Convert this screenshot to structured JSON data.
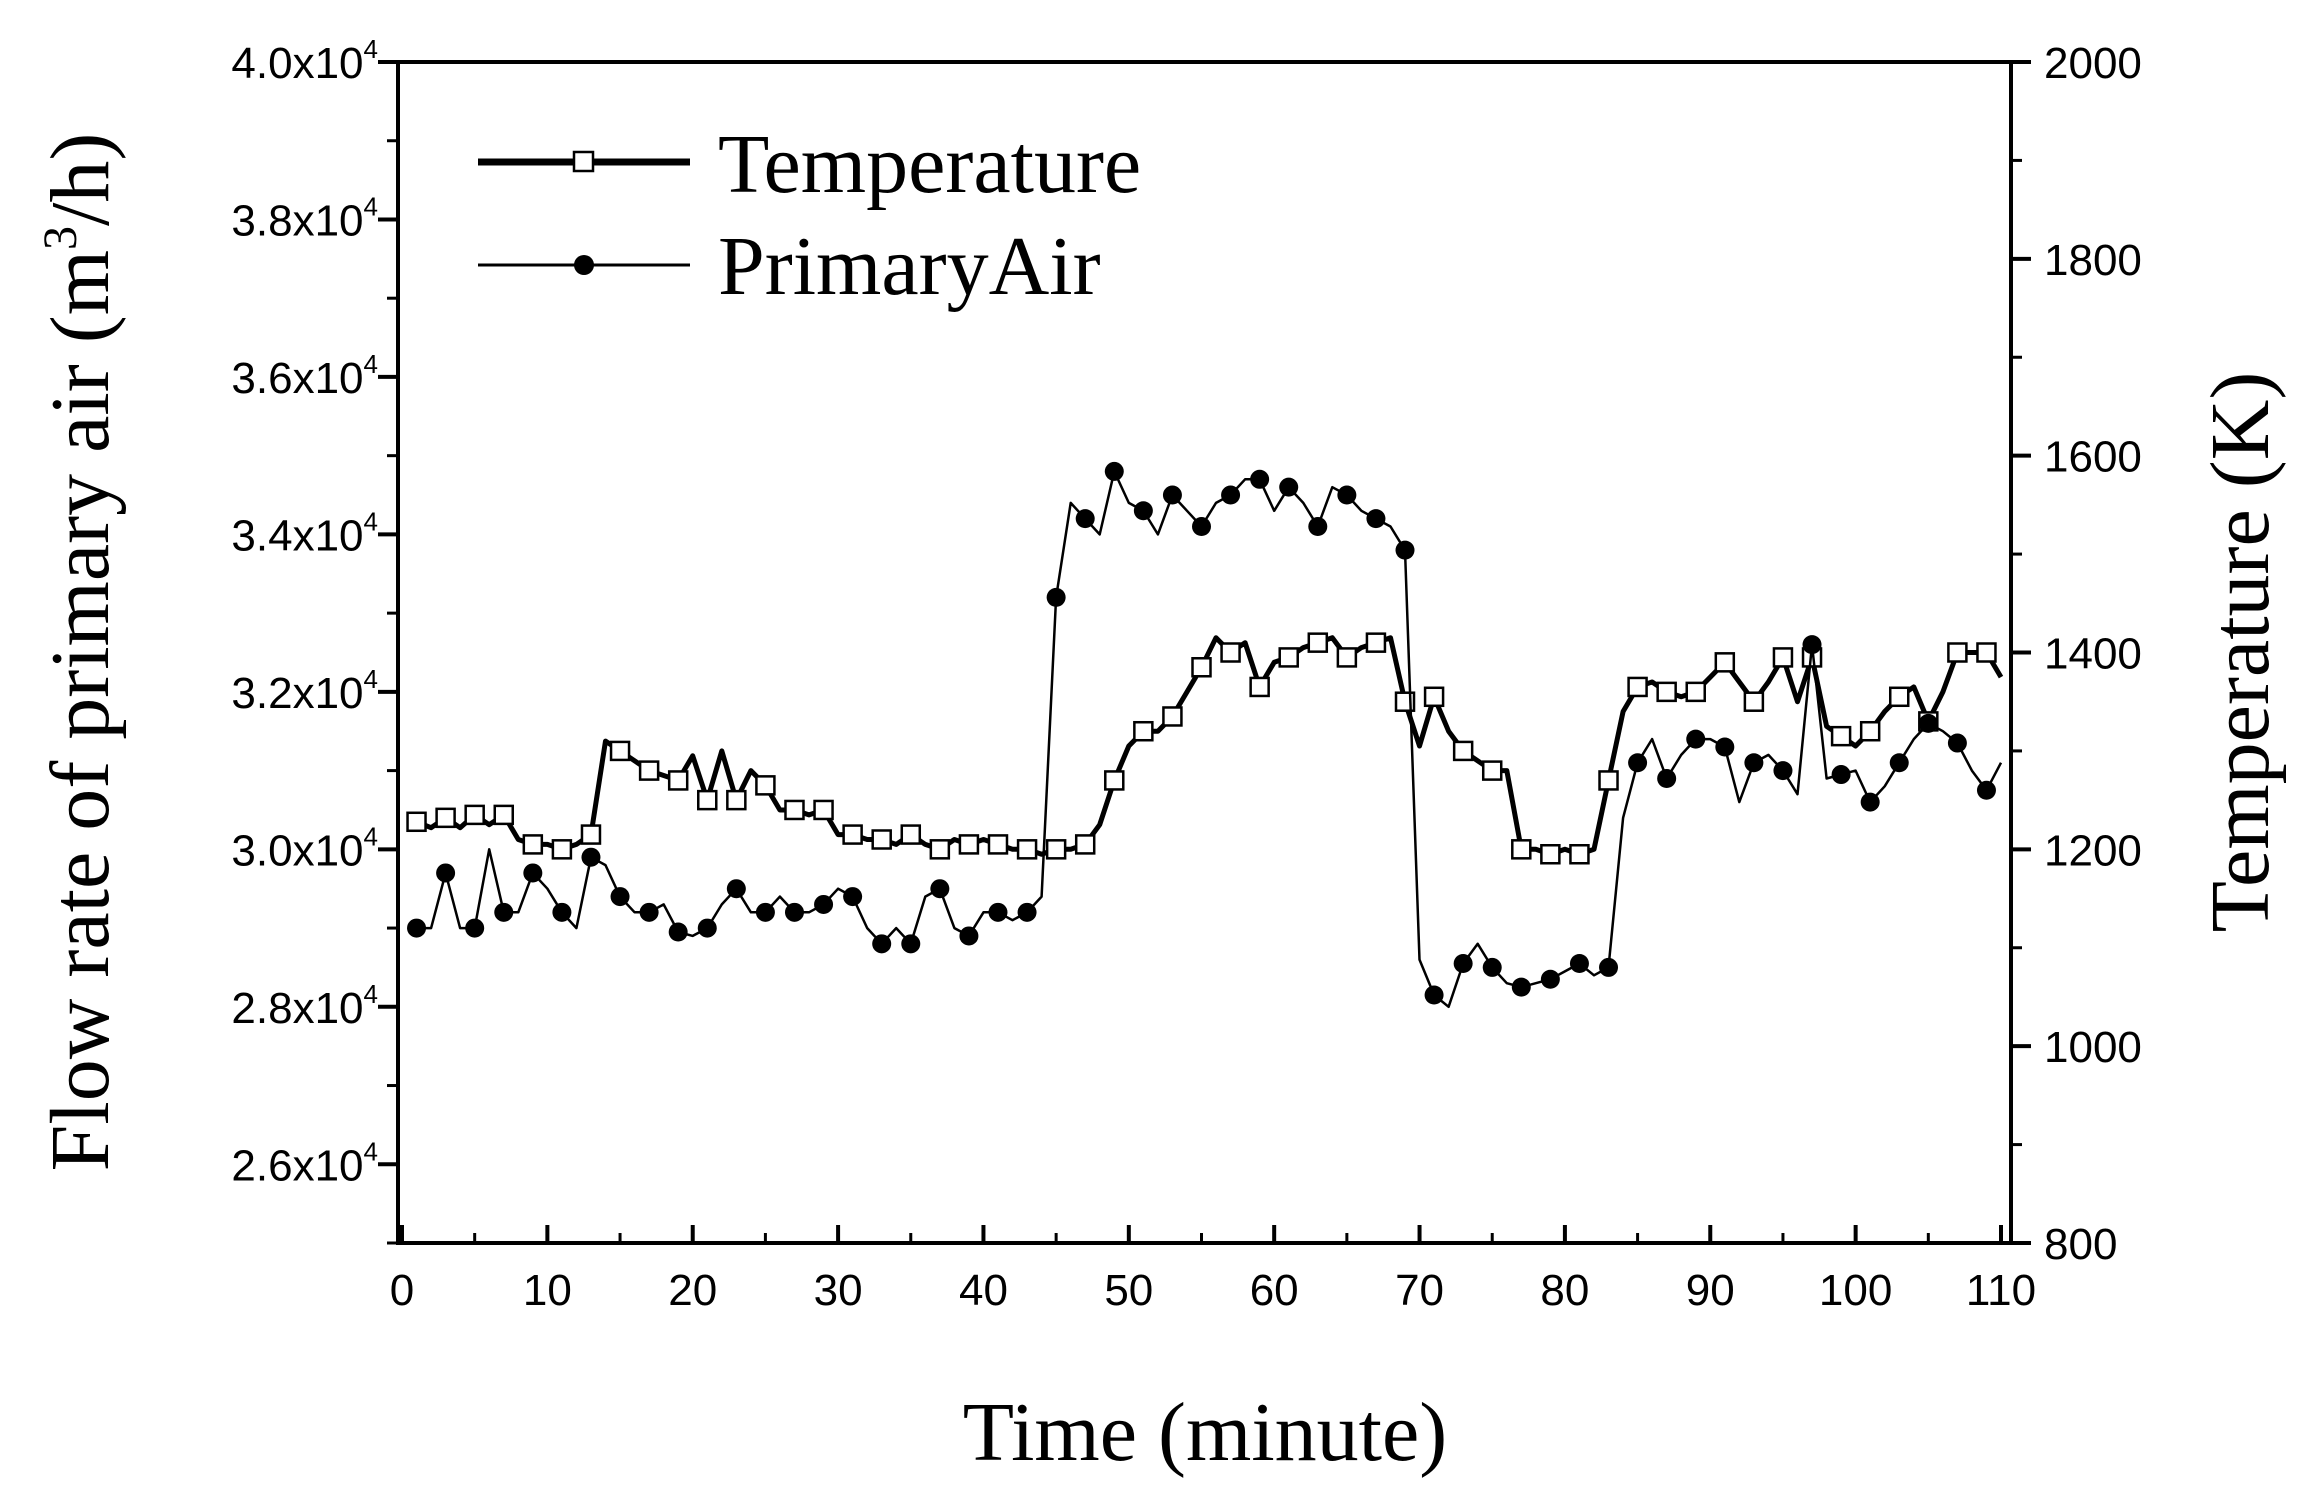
{
  "chart_data": {
    "type": "line",
    "xlabel": "Time (minute)",
    "ylabel_left": "Flow rate of primary air (m3/h)",
    "ylabel_left_parts": {
      "main": "Flow rate of primary air (m",
      "sup": "3",
      "tail": "/h)"
    },
    "ylabel_right": "Temperature (K)",
    "xlim": [
      0,
      110
    ],
    "ylim_left": [
      25000,
      40000
    ],
    "ylim_right": [
      800,
      2000
    ],
    "x_ticks": [
      0,
      10,
      20,
      30,
      40,
      50,
      60,
      70,
      80,
      90,
      100,
      110
    ],
    "x_tick_labels": [
      "0",
      "10",
      "20",
      "30",
      "40",
      "50",
      "60",
      "70",
      "80",
      "90",
      "100",
      "110"
    ],
    "y_left_ticks": [
      26000,
      28000,
      30000,
      32000,
      34000,
      36000,
      38000,
      40000
    ],
    "y_left_tick_labels": [
      {
        "mant": "2.6x10",
        "exp": "4"
      },
      {
        "mant": "2.8x10",
        "exp": "4"
      },
      {
        "mant": "3.0x10",
        "exp": "4"
      },
      {
        "mant": "3.2x10",
        "exp": "4"
      },
      {
        "mant": "3.4x10",
        "exp": "4"
      },
      {
        "mant": "3.6x10",
        "exp": "4"
      },
      {
        "mant": "3.8x10",
        "exp": "4"
      },
      {
        "mant": "4.0x10",
        "exp": "4"
      }
    ],
    "y_right_ticks": [
      800,
      1000,
      1200,
      1400,
      1600,
      1800,
      2000
    ],
    "y_right_tick_labels": [
      "800",
      "1000",
      "1200",
      "1400",
      "1600",
      "1800",
      "2000"
    ],
    "legend": {
      "position": "top-left",
      "entries": [
        "Temperature",
        "PrimaryAir"
      ]
    },
    "series": [
      {
        "name": "Temperature",
        "axis": "right",
        "marker": "open-square",
        "x": [
          1,
          2,
          3,
          4,
          5,
          6,
          7,
          8,
          9,
          10,
          11,
          12,
          13,
          14,
          15,
          16,
          17,
          18,
          19,
          20,
          21,
          22,
          23,
          24,
          25,
          26,
          27,
          28,
          29,
          30,
          31,
          32,
          33,
          34,
          35,
          36,
          37,
          38,
          39,
          40,
          41,
          42,
          43,
          44,
          45,
          46,
          47,
          48,
          49,
          50,
          51,
          52,
          53,
          54,
          55,
          56,
          57,
          58,
          59,
          60,
          61,
          62,
          63,
          64,
          65,
          66,
          67,
          68,
          69,
          70,
          71,
          72,
          73,
          74,
          75,
          76,
          77,
          78,
          79,
          80,
          81,
          82,
          83,
          84,
          85,
          86,
          87,
          88,
          89,
          90,
          91,
          92,
          93,
          94,
          95,
          96,
          97,
          98,
          99,
          100,
          101,
          102,
          103,
          104,
          105,
          106,
          107,
          108,
          109,
          110
        ],
        "values": [
          1228,
          1222,
          1232,
          1222,
          1235,
          1225,
          1235,
          1210,
          1205,
          1205,
          1200,
          1205,
          1215,
          1310,
          1300,
          1290,
          1280,
          1275,
          1270,
          1295,
          1250,
          1300,
          1250,
          1280,
          1265,
          1240,
          1240,
          1235,
          1240,
          1215,
          1215,
          1210,
          1210,
          1205,
          1215,
          1205,
          1200,
          1210,
          1205,
          1210,
          1205,
          1200,
          1200,
          1195,
          1200,
          1200,
          1205,
          1225,
          1270,
          1305,
          1320,
          1320,
          1335,
          1360,
          1385,
          1415,
          1400,
          1410,
          1365,
          1390,
          1395,
          1405,
          1410,
          1415,
          1395,
          1405,
          1410,
          1415,
          1350,
          1305,
          1355,
          1320,
          1300,
          1290,
          1280,
          1280,
          1200,
          1200,
          1195,
          1200,
          1195,
          1200,
          1270,
          1340,
          1365,
          1370,
          1360,
          1355,
          1360,
          1375,
          1390,
          1370,
          1350,
          1370,
          1395,
          1350,
          1395,
          1325,
          1315,
          1305,
          1320,
          1340,
          1355,
          1365,
          1330,
          1360,
          1400,
          1400,
          1400,
          1375
        ]
      },
      {
        "name": "PrimaryAir",
        "axis": "left",
        "marker": "filled-circle",
        "x": [
          1,
          2,
          3,
          4,
          5,
          6,
          7,
          8,
          9,
          10,
          11,
          12,
          13,
          14,
          15,
          16,
          17,
          18,
          19,
          20,
          21,
          22,
          23,
          24,
          25,
          26,
          27,
          28,
          29,
          30,
          31,
          32,
          33,
          34,
          35,
          36,
          37,
          38,
          39,
          40,
          41,
          42,
          43,
          44,
          45,
          46,
          47,
          48,
          49,
          50,
          51,
          52,
          53,
          54,
          55,
          56,
          57,
          58,
          59,
          60,
          61,
          62,
          63,
          64,
          65,
          66,
          67,
          68,
          69,
          70,
          71,
          72,
          73,
          74,
          75,
          76,
          77,
          78,
          79,
          80,
          81,
          82,
          83,
          84,
          85,
          86,
          87,
          88,
          89,
          90,
          91,
          92,
          93,
          94,
          95,
          96,
          97,
          98,
          99,
          100,
          101,
          102,
          103,
          104,
          105,
          106,
          107,
          108,
          109,
          110
        ],
        "values": [
          29000,
          29000,
          29700,
          29000,
          29000,
          30000,
          29200,
          29200,
          29700,
          29500,
          29200,
          29000,
          29900,
          29800,
          29400,
          29200,
          29200,
          29300,
          28950,
          28900,
          29000,
          29300,
          29500,
          29200,
          29200,
          29400,
          29200,
          29200,
          29300,
          29500,
          29400,
          29000,
          28800,
          29000,
          28800,
          29400,
          29500,
          29000,
          28900,
          29200,
          29200,
          29100,
          29200,
          29400,
          33200,
          34400,
          34200,
          34000,
          34800,
          34400,
          34300,
          34000,
          34500,
          34300,
          34100,
          34400,
          34500,
          34700,
          34700,
          34300,
          34600,
          34400,
          34100,
          34600,
          34500,
          34300,
          34200,
          34100,
          33800,
          28600,
          28150,
          28000,
          28550,
          28800,
          28500,
          28300,
          28250,
          28300,
          28350,
          28450,
          28550,
          28400,
          28500,
          30400,
          31100,
          31400,
          30900,
          31200,
          31400,
          31400,
          31300,
          30600,
          31100,
          31200,
          31000,
          30700,
          32600,
          30900,
          30950,
          31000,
          30600,
          30800,
          31100,
          31400,
          31600,
          31500,
          31350,
          31000,
          30750,
          31100
        ]
      }
    ]
  }
}
